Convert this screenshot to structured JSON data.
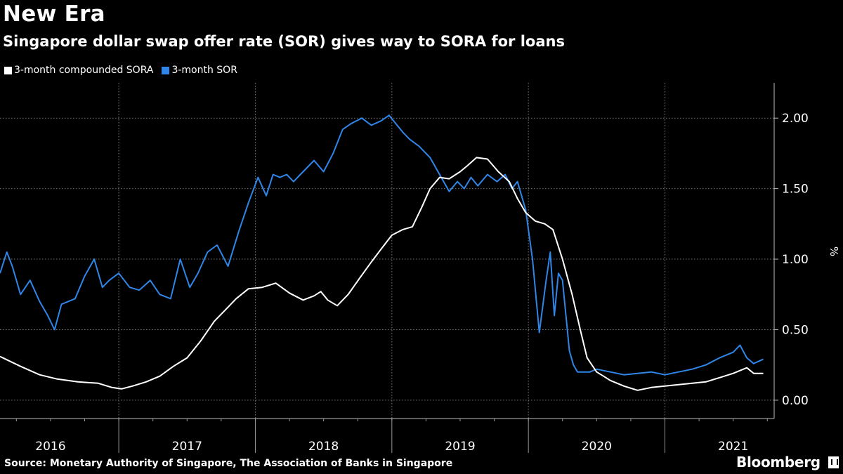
{
  "title": "New Era",
  "subtitle": "Singapore dollar swap offer rate (SOR) gives way to SORA for loans",
  "legend": [
    {
      "label": "3-month compounded SORA",
      "color": "#ffffff"
    },
    {
      "label": "3-month SOR",
      "color": "#2f86e8"
    }
  ],
  "source": "Source: Monetary Authority of Singapore, The Association of Banks in Singapore",
  "brand": "Bloomberg",
  "chart_data": {
    "type": "line",
    "title": "New Era",
    "xlabel": "",
    "ylabel": "%",
    "ylim": [
      -0.13,
      2.25
    ],
    "xlim": [
      2015.63,
      2021.3
    ],
    "y_ticks": [
      0.0,
      0.5,
      1.0,
      1.5,
      2.0
    ],
    "y_tick_labels": [
      "0.00",
      "0.50",
      "1.00",
      "1.50",
      "2.00"
    ],
    "x_tick_labels": [
      {
        "label": "2016",
        "x": 2016.0
      },
      {
        "label": "2017",
        "x": 2017.0
      },
      {
        "label": "2018",
        "x": 2018.0
      },
      {
        "label": "2019",
        "x": 2019.0
      },
      {
        "label": "2020",
        "x": 2020.0
      },
      {
        "label": "2021",
        "x": 2021.0
      }
    ],
    "year_boundaries": [
      2016.5,
      2017.5,
      2018.5,
      2019.5,
      2020.5
    ],
    "grid": true,
    "legend_position": "top-left",
    "series": [
      {
        "name": "3-month compounded SORA",
        "color": "#ffffff",
        "x": [
          2015.63,
          2015.78,
          2015.92,
          2016.05,
          2016.2,
          2016.35,
          2016.45,
          2016.52,
          2016.6,
          2016.7,
          2016.8,
          2016.9,
          2017.0,
          2017.1,
          2017.2,
          2017.28,
          2017.36,
          2017.45,
          2017.55,
          2017.65,
          2017.75,
          2017.85,
          2017.93,
          2017.98,
          2018.03,
          2018.1,
          2018.18,
          2018.26,
          2018.35,
          2018.42,
          2018.5,
          2018.58,
          2018.65,
          2018.72,
          2018.78,
          2018.85,
          2018.92,
          2019.0,
          2019.05,
          2019.12,
          2019.2,
          2019.28,
          2019.36,
          2019.42,
          2019.48,
          2019.55,
          2019.62,
          2019.68,
          2019.75,
          2019.82,
          2019.88,
          2019.93,
          2020.0,
          2020.05,
          2020.1,
          2020.2,
          2020.3,
          2020.4,
          2020.5,
          2020.6,
          2020.7,
          2020.8,
          2020.9,
          2021.0,
          2021.05,
          2021.1,
          2021.15,
          2021.22
        ],
        "values": [
          0.31,
          0.24,
          0.18,
          0.15,
          0.13,
          0.12,
          0.09,
          0.08,
          0.1,
          0.13,
          0.17,
          0.24,
          0.3,
          0.42,
          0.56,
          0.64,
          0.72,
          0.79,
          0.8,
          0.83,
          0.76,
          0.71,
          0.74,
          0.77,
          0.71,
          0.67,
          0.75,
          0.86,
          0.98,
          1.07,
          1.17,
          1.21,
          1.23,
          1.37,
          1.5,
          1.58,
          1.57,
          1.62,
          1.66,
          1.72,
          1.71,
          1.62,
          1.55,
          1.43,
          1.33,
          1.27,
          1.25,
          1.21,
          1.0,
          0.75,
          0.5,
          0.3,
          0.2,
          0.17,
          0.14,
          0.1,
          0.07,
          0.09,
          0.1,
          0.11,
          0.12,
          0.13,
          0.16,
          0.19,
          0.21,
          0.23,
          0.19,
          0.19
        ]
      },
      {
        "name": "3-month SOR",
        "color": "#2f86e8",
        "x": [
          2015.63,
          2015.68,
          2015.72,
          2015.78,
          2015.85,
          2015.92,
          2015.98,
          2016.03,
          2016.08,
          2016.13,
          2016.18,
          2016.25,
          2016.32,
          2016.38,
          2016.43,
          2016.5,
          2016.58,
          2016.65,
          2016.73,
          2016.8,
          2016.88,
          2016.95,
          2017.02,
          2017.08,
          2017.15,
          2017.22,
          2017.3,
          2017.38,
          2017.45,
          2017.52,
          2017.58,
          2017.63,
          2017.68,
          2017.73,
          2017.78,
          2017.83,
          2017.88,
          2017.93,
          2018.0,
          2018.07,
          2018.14,
          2018.2,
          2018.28,
          2018.35,
          2018.42,
          2018.48,
          2018.53,
          2018.58,
          2018.63,
          2018.7,
          2018.78,
          2018.85,
          2018.92,
          2018.98,
          2019.03,
          2019.08,
          2019.13,
          2019.2,
          2019.27,
          2019.33,
          2019.38,
          2019.42,
          2019.48,
          2019.53,
          2019.58,
          2019.63,
          2019.66,
          2019.69,
          2019.72,
          2019.75,
          2019.78,
          2019.8,
          2019.83,
          2019.86,
          2019.9,
          2019.95,
          2020.0,
          2020.1,
          2020.2,
          2020.3,
          2020.4,
          2020.5,
          2020.6,
          2020.7,
          2020.8,
          2020.9,
          2021.0,
          2021.05,
          2021.1,
          2021.15,
          2021.22
        ],
        "values": [
          0.9,
          1.05,
          0.95,
          0.75,
          0.85,
          0.7,
          0.6,
          0.5,
          0.68,
          0.7,
          0.72,
          0.88,
          1.0,
          0.8,
          0.85,
          0.9,
          0.8,
          0.78,
          0.85,
          0.75,
          0.72,
          1.0,
          0.8,
          0.9,
          1.05,
          1.1,
          0.95,
          1.2,
          1.4,
          1.58,
          1.45,
          1.6,
          1.58,
          1.6,
          1.55,
          1.6,
          1.65,
          1.7,
          1.62,
          1.75,
          1.92,
          1.96,
          2.0,
          1.95,
          1.98,
          2.02,
          1.96,
          1.9,
          1.85,
          1.8,
          1.72,
          1.6,
          1.48,
          1.55,
          1.5,
          1.58,
          1.52,
          1.6,
          1.55,
          1.6,
          1.5,
          1.55,
          1.35,
          1.0,
          0.48,
          0.85,
          1.05,
          0.6,
          0.9,
          0.85,
          0.55,
          0.35,
          0.25,
          0.2,
          0.2,
          0.2,
          0.22,
          0.2,
          0.18,
          0.19,
          0.2,
          0.18,
          0.2,
          0.22,
          0.25,
          0.3,
          0.34,
          0.39,
          0.3,
          0.26,
          0.29
        ]
      }
    ]
  }
}
